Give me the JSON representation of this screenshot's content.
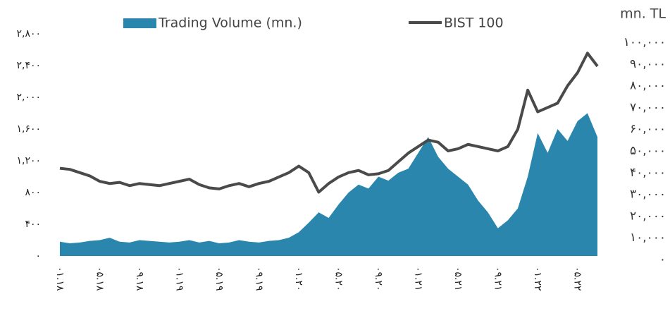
{
  "chart_data": {
    "type": "area-line",
    "y2_title": "mn. TL",
    "categories": [
      "۰۱.۱۸",
      null,
      null,
      null,
      "۰۵.۱۸",
      null,
      null,
      null,
      "۰۹.۱۸",
      null,
      null,
      null,
      "۰۱.۱۹",
      null,
      null,
      null,
      "۰۵.۱۹",
      null,
      null,
      null,
      "۰۹.۱۹",
      null,
      null,
      null,
      "۰۱.۲۰",
      null,
      null,
      null,
      "۰۵.۲۰",
      null,
      null,
      null,
      "۰۹.۲۰",
      null,
      null,
      null,
      "۰۱.۲۱",
      null,
      null,
      null,
      "۰۵.۲۱",
      null,
      null,
      null,
      "۰۹.۲۱",
      null,
      null,
      null,
      "۰۱.۲۲",
      null,
      null,
      null,
      "۰۵.۲۲",
      null,
      null
    ],
    "series": [
      {
        "name": "Trading Volume (mn.)",
        "type": "area",
        "color": "#2a86ad",
        "axis": "y",
        "values": [
          180,
          160,
          170,
          190,
          200,
          230,
          180,
          170,
          200,
          190,
          180,
          170,
          180,
          200,
          170,
          190,
          160,
          170,
          200,
          180,
          170,
          190,
          200,
          230,
          300,
          420,
          550,
          480,
          650,
          800,
          900,
          850,
          1000,
          950,
          1050,
          1100,
          1300,
          1500,
          1250,
          1100,
          1000,
          900,
          700,
          550,
          350,
          450,
          600,
          1000,
          1550,
          1300,
          1600,
          1450,
          1700,
          1800,
          1500
        ]
      },
      {
        "name": "BIST 100",
        "type": "line",
        "color": "#4a4a4a",
        "axis": "y2",
        "values": [
          42000,
          41500,
          40000,
          38500,
          36000,
          35000,
          35500,
          34000,
          35000,
          34500,
          34000,
          35000,
          36000,
          37000,
          34500,
          33000,
          32500,
          34000,
          35000,
          33500,
          35000,
          36000,
          38000,
          40000,
          43000,
          40000,
          31000,
          35000,
          38000,
          40000,
          41000,
          39000,
          39500,
          41000,
          45000,
          49000,
          52000,
          55000,
          54000,
          50000,
          51000,
          53000,
          52000,
          51000,
          50000,
          52000,
          60000,
          78000,
          68000,
          70000,
          72000,
          80000,
          86000,
          95000,
          89000
        ]
      }
    ],
    "ylim": [
      0,
      2800
    ],
    "yticks": [
      {
        "value": 0,
        "label": "۰"
      },
      {
        "value": 400,
        "label": "۴۰۰"
      },
      {
        "value": 800,
        "label": "۸۰۰"
      },
      {
        "value": 1200,
        "label": "۱,۲۰۰"
      },
      {
        "value": 1600,
        "label": "۱,۶۰۰"
      },
      {
        "value": 2000,
        "label": "۲,۰۰۰"
      },
      {
        "value": 2400,
        "label": "۲,۴۰۰"
      },
      {
        "value": 2800,
        "label": "۲,۸۰۰"
      }
    ],
    "y2lim": [
      0,
      100000
    ],
    "y2ticks": [
      {
        "value": 0,
        "label": "۰"
      },
      {
        "value": 10000,
        "label": "۱۰,۰۰۰"
      },
      {
        "value": 20000,
        "label": "۲۰,۰۰۰"
      },
      {
        "value": 30000,
        "label": "۳۰,۰۰۰"
      },
      {
        "value": 40000,
        "label": "۴۰,۰۰۰"
      },
      {
        "value": 50000,
        "label": "۵۰,۰۰۰"
      },
      {
        "value": 60000,
        "label": "۶۰,۰۰۰"
      },
      {
        "value": 70000,
        "label": "۷۰,۰۰۰"
      },
      {
        "value": 80000,
        "label": "۸۰,۰۰۰"
      },
      {
        "value": 90000,
        "label": "۹۰,۰۰۰"
      },
      {
        "value": 100000,
        "label": "۱۰۰,۰۰۰"
      }
    ],
    "grid": false
  }
}
